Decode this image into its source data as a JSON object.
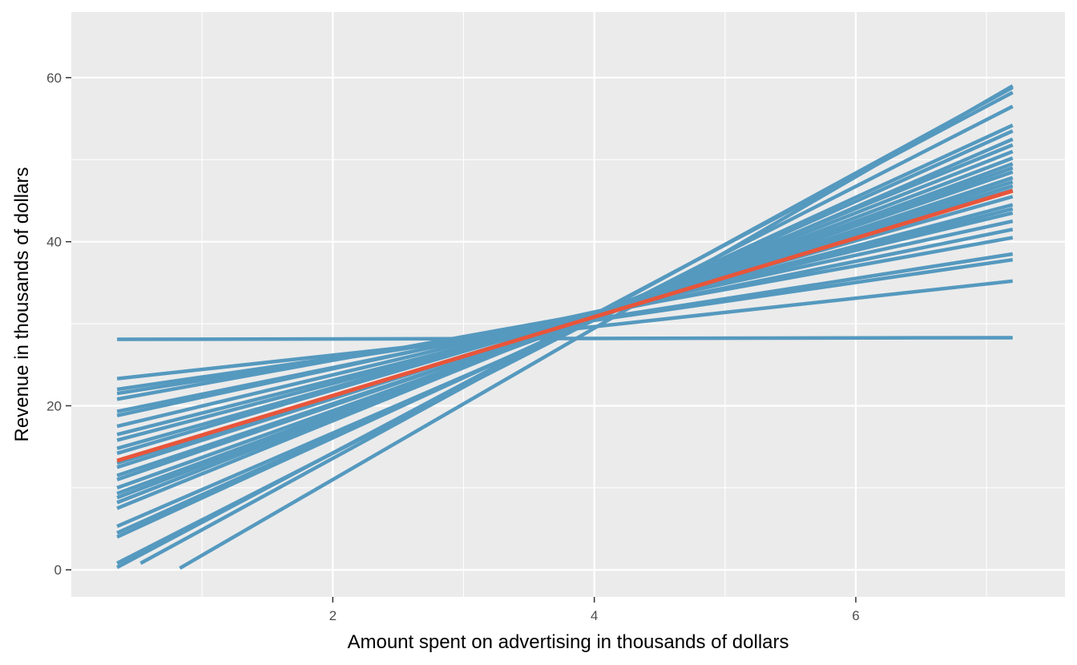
{
  "chart_data": {
    "type": "line",
    "xlabel": "Amount spent on advertising in thousands of dollars",
    "ylabel": "Revenue in thousands of dollars",
    "xlim": [
      0.0,
      7.6
    ],
    "ylim": [
      -3.3,
      68.0
    ],
    "x_ticks": [
      2,
      4,
      6
    ],
    "y_ticks": [
      0,
      20,
      40,
      60
    ],
    "x_tick_labels": [
      "2",
      "4",
      "6"
    ],
    "y_tick_labels": [
      "0",
      "20",
      "40",
      "60"
    ],
    "grid": true,
    "colors": {
      "panel_background": "#ebebeb",
      "grid_line": "#ffffff",
      "bootstrap_line": "#5599bf",
      "fitted_line": "#e8553a"
    },
    "bootstrap_lines": [
      {
        "x": [
          0.35,
          7.2
        ],
        "y": [
          28.1,
          28.3
        ]
      },
      {
        "x": [
          0.35,
          7.2
        ],
        "y": [
          23.3,
          35.2
        ]
      },
      {
        "x": [
          0.35,
          7.2
        ],
        "y": [
          22.0,
          37.8
        ]
      },
      {
        "x": [
          0.35,
          7.2
        ],
        "y": [
          21.5,
          38.5
        ]
      },
      {
        "x": [
          0.35,
          7.2
        ],
        "y": [
          20.8,
          40.5
        ]
      },
      {
        "x": [
          0.35,
          7.2
        ],
        "y": [
          19.3,
          41.5
        ]
      },
      {
        "x": [
          0.35,
          7.2
        ],
        "y": [
          18.8,
          42.5
        ]
      },
      {
        "x": [
          0.35,
          7.2
        ],
        "y": [
          17.5,
          43.5
        ]
      },
      {
        "x": [
          0.35,
          7.2
        ],
        "y": [
          16.5,
          44.0
        ]
      },
      {
        "x": [
          0.35,
          7.2
        ],
        "y": [
          15.8,
          44.5
        ]
      },
      {
        "x": [
          0.35,
          7.2
        ],
        "y": [
          14.8,
          45.5
        ]
      },
      {
        "x": [
          0.35,
          7.2
        ],
        "y": [
          14.2,
          46.3
        ]
      },
      {
        "x": [
          0.35,
          7.2
        ],
        "y": [
          13.0,
          46.8
        ]
      },
      {
        "x": [
          0.35,
          7.2
        ],
        "y": [
          12.5,
          47.3
        ]
      },
      {
        "x": [
          0.35,
          7.2
        ],
        "y": [
          11.5,
          47.8
        ]
      },
      {
        "x": [
          0.35,
          7.2
        ],
        "y": [
          11.0,
          48.5
        ]
      },
      {
        "x": [
          0.35,
          7.2
        ],
        "y": [
          10.0,
          49.0
        ]
      },
      {
        "x": [
          0.35,
          7.2
        ],
        "y": [
          9.3,
          49.5
        ]
      },
      {
        "x": [
          0.35,
          7.2
        ],
        "y": [
          8.8,
          50.2
        ]
      },
      {
        "x": [
          0.35,
          7.2
        ],
        "y": [
          8.2,
          51.0
        ]
      },
      {
        "x": [
          0.35,
          7.2
        ],
        "y": [
          7.5,
          51.8
        ]
      },
      {
        "x": [
          0.35,
          7.2
        ],
        "y": [
          5.3,
          52.5
        ]
      },
      {
        "x": [
          0.35,
          7.2
        ],
        "y": [
          4.5,
          53.5
        ]
      },
      {
        "x": [
          0.35,
          7.2
        ],
        "y": [
          4.0,
          54.2
        ]
      },
      {
        "x": [
          0.35,
          7.2
        ],
        "y": [
          0.8,
          56.5
        ]
      },
      {
        "x": [
          0.35,
          7.2
        ],
        "y": [
          0.3,
          58.2
        ]
      },
      {
        "x": [
          0.53,
          7.2
        ],
        "y": [
          0.8,
          58.8
        ]
      },
      {
        "x": [
          0.83,
          7.2
        ],
        "y": [
          0.2,
          59.0
        ]
      }
    ],
    "fitted_line": {
      "x": [
        0.35,
        7.2
      ],
      "y": [
        13.3,
        46.2
      ]
    }
  }
}
